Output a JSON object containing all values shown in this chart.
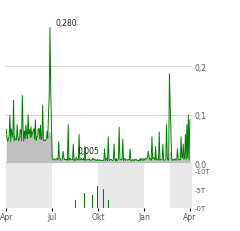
{
  "x_labels": [
    "Apr",
    "Jul",
    "Okt",
    "Jan",
    "Apr"
  ],
  "x_tick_pos": [
    0,
    63,
    126,
    189,
    252
  ],
  "price_ylim": [
    0.0,
    0.32
  ],
  "price_yticks": [
    0.0,
    0.1,
    0.2
  ],
  "price_ytick_labels": [
    "0,0",
    "0,1",
    "0,2"
  ],
  "volume_ylim": [
    0,
    12000
  ],
  "volume_yticks": [
    0,
    5000,
    10000
  ],
  "volume_ytick_labels": [
    "-0T",
    "-5T",
    "-10T"
  ],
  "peak_label": "0,280",
  "base_label": "0,005",
  "line_color": "#008000",
  "fill_color": "#c0c0c0",
  "bg_color": "#ffffff",
  "band_color": "#e8e8e8",
  "grid_color": "#c8c8c8",
  "label_color": "#555555",
  "annot_color": "#222222"
}
